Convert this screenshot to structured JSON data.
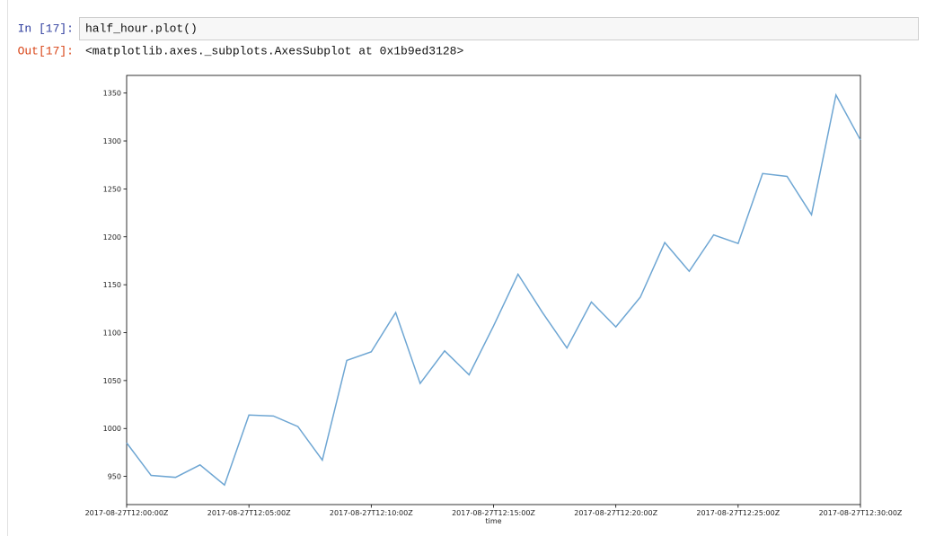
{
  "cells": [
    {
      "prompt": "In [17]:",
      "source": "half_hour.plot()",
      "output_prompt": "Out[17]:",
      "output": "<matplotlib.axes._subplots.AxesSubplot at 0x1b9ed3128>"
    }
  ],
  "chart_data": {
    "type": "line",
    "xlabel": "time",
    "x": [
      "2017-08-27T12:00:00Z",
      "2017-08-27T12:01:00Z",
      "2017-08-27T12:02:00Z",
      "2017-08-27T12:03:00Z",
      "2017-08-27T12:04:00Z",
      "2017-08-27T12:05:00Z",
      "2017-08-27T12:06:00Z",
      "2017-08-27T12:07:00Z",
      "2017-08-27T12:08:00Z",
      "2017-08-27T12:09:00Z",
      "2017-08-27T12:10:00Z",
      "2017-08-27T12:11:00Z",
      "2017-08-27T12:12:00Z",
      "2017-08-27T12:13:00Z",
      "2017-08-27T12:14:00Z",
      "2017-08-27T12:15:00Z",
      "2017-08-27T12:16:00Z",
      "2017-08-27T12:17:00Z",
      "2017-08-27T12:18:00Z",
      "2017-08-27T12:19:00Z",
      "2017-08-27T12:20:00Z",
      "2017-08-27T12:21:00Z",
      "2017-08-27T12:22:00Z",
      "2017-08-27T12:23:00Z",
      "2017-08-27T12:24:00Z",
      "2017-08-27T12:25:00Z",
      "2017-08-27T12:26:00Z",
      "2017-08-27T12:27:00Z",
      "2017-08-27T12:28:00Z",
      "2017-08-27T12:29:00Z",
      "2017-08-27T12:30:00Z"
    ],
    "values": [
      985,
      951,
      949,
      962,
      941,
      1014,
      1013,
      1002,
      967,
      1071,
      1080,
      1121,
      1047,
      1081,
      1056,
      1107,
      1161,
      1121,
      1084,
      1132,
      1106,
      1137,
      1194,
      1164,
      1202,
      1193,
      1266,
      1263,
      1223,
      1348,
      1301
    ],
    "color": "#6ea6d3",
    "xlim": [
      "2017-08-27T12:00:00Z",
      "2017-08-27T12:30:00Z"
    ],
    "xticks": [
      "2017-08-27T12:00:00Z",
      "2017-08-27T12:05:00Z",
      "2017-08-27T12:10:00Z",
      "2017-08-27T12:15:00Z",
      "2017-08-27T12:20:00Z",
      "2017-08-27T12:25:00Z",
      "2017-08-27T12:30:00Z"
    ],
    "ylim": [
      920.6,
      1368.4
    ],
    "yticks": [
      950,
      1000,
      1050,
      1100,
      1150,
      1200,
      1250,
      1300,
      1350
    ]
  }
}
